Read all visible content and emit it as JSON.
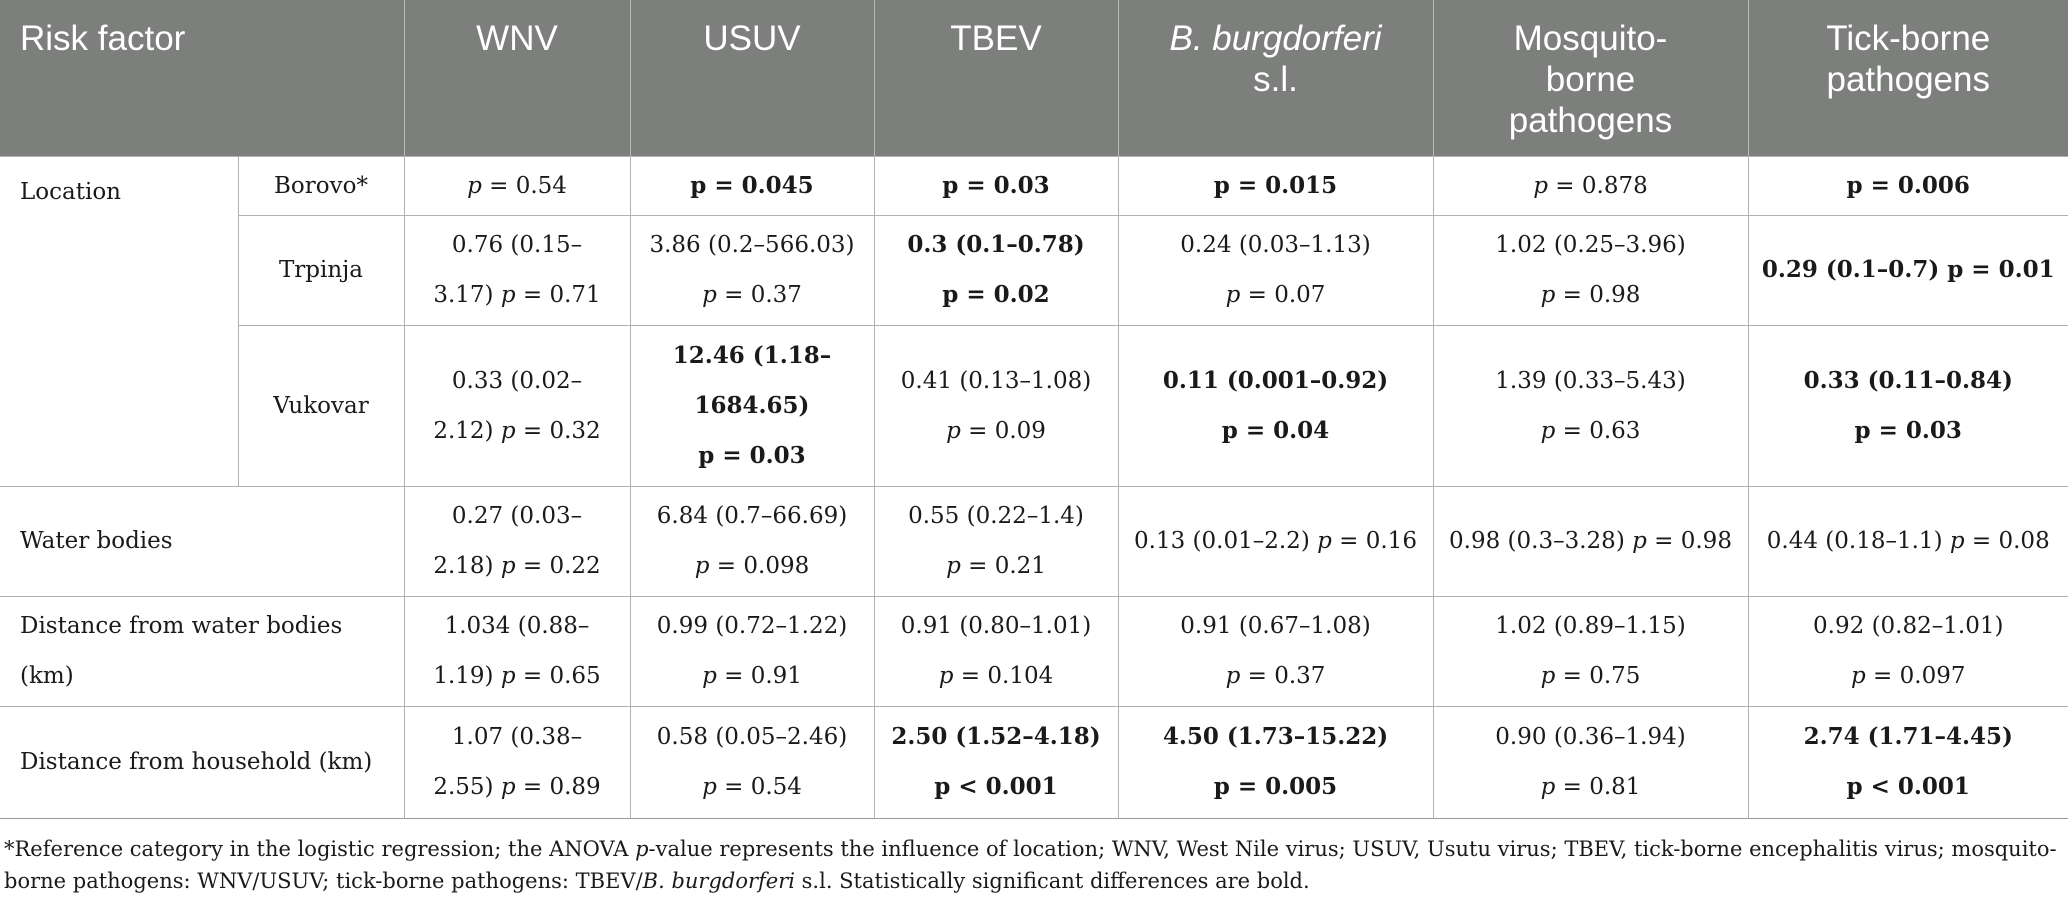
{
  "header": {
    "risk_factor": "Risk factor",
    "wnv": "WNV",
    "usuv": "USUV",
    "tbev": "TBEV",
    "bb_italic": "B. burgdorferi",
    "bb_rest": "s.l.",
    "mosquito_line1": "Mosquito-",
    "mosquito_line2": "borne",
    "mosquito_line3": "pathogens",
    "tick_line1": "Tick-borne",
    "tick_line2": "pathogens"
  },
  "rows": {
    "location_label": "Location",
    "borovo": {
      "label": "Borovo*",
      "wnv": "= 0.54",
      "usuv": "p = 0.045",
      "tbev": "p = 0.03",
      "bb": "p = 0.015",
      "mosq": "= 0.878",
      "tick": "p = 0.006"
    },
    "trpinja": {
      "label": "Trpinja",
      "wnv_a": "0.76 (0.15–",
      "wnv_b": "3.17)",
      "wnv_c": "= 0.71",
      "usuv_a": "3.86 (0.2–566.03)",
      "usuv_b": "= 0.37",
      "tbev_a": "0.3 (0.1–0.78)",
      "tbev_b": "p = 0.02",
      "bb_a": "0.24 (0.03–1.13)",
      "bb_b": "= 0.07",
      "mosq_a": "1.02 (0.25–3.96)",
      "mosq_b": "= 0.98",
      "tick": "0.29 (0.1–0.7) p = 0.01"
    },
    "vukovar": {
      "label": "Vukovar",
      "wnv_a": "0.33 (0.02–",
      "wnv_b": "2.12)",
      "wnv_c": "= 0.32",
      "usuv_a": "12.46 (1.18–",
      "usuv_b": "1684.65)",
      "usuv_c": "p = 0.03",
      "tbev_a": "0.41 (0.13–1.08)",
      "tbev_b": "= 0.09",
      "bb_a": "0.11 (0.001–0.92)",
      "bb_b": "p = 0.04",
      "mosq_a": "1.39 (0.33–5.43)",
      "mosq_b": "= 0.63",
      "tick_a": "0.33 (0.11–0.84)",
      "tick_b": "p = 0.03"
    },
    "water": {
      "label": "Water bodies",
      "wnv_a": "0.27 (0.03–",
      "wnv_b": "2.18)",
      "wnv_c": "= 0.22",
      "usuv_a": "6.84 (0.7–66.69)",
      "usuv_b": "= 0.098",
      "tbev_a": "0.55 (0.22–1.4)",
      "tbev_b": "= 0.21",
      "bb_a": "0.13 (0.01–2.2)",
      "bb_b": "= 0.16",
      "mosq_a": "0.98 (0.3–3.28)",
      "mosq_b": "= 0.98",
      "tick_a": "0.44 (0.18–1.1)",
      "tick_b": "= 0.08"
    },
    "dist_water": {
      "label_a": "Distance from water bodies",
      "label_b": "(km)",
      "wnv_a": "1.034 (0.88–",
      "wnv_b": "1.19)",
      "wnv_c": "= 0.65",
      "usuv_a": "0.99 (0.72–1.22)",
      "usuv_b": "= 0.91",
      "tbev_a": "0.91 (0.80–1.01)",
      "tbev_b": "= 0.104",
      "bb_a": "0.91 (0.67–1.08)",
      "bb_b": "= 0.37",
      "mosq_a": "1.02 (0.89–1.15)",
      "mosq_b": "= 0.75",
      "tick_a": "0.92 (0.82–1.01)",
      "tick_b": "= 0.097"
    },
    "dist_house": {
      "label": "Distance from household (km)",
      "wnv_a": "1.07 (0.38–",
      "wnv_b": "2.55)",
      "wnv_c": "= 0.89",
      "usuv_a": "0.58 (0.05–2.46)",
      "usuv_b": "= 0.54",
      "tbev_a": "2.50 (1.52–4.18)",
      "tbev_b": "p < 0.001",
      "bb_a": "4.50 (1.73–15.22)",
      "bb_b": "p = 0.005",
      "mosq_a": "0.90 (0.36–1.94)",
      "mosq_b": "= 0.81",
      "tick_a": "2.74 (1.71–4.45)",
      "tick_b": "p < 0.001"
    }
  },
  "p_symbol": "p",
  "footnote": {
    "part1": "*Reference category in the logistic regression; the ANOVA ",
    "p_italic": "p",
    "part2": "-value represents the influence of location; WNV, West Nile virus; USUV, Usutu virus; TBEV, tick-borne encephalitis virus; mosquito-borne pathogens: WNV/USUV; tick-borne pathogens: TBEV/",
    "bb_italic": "B. burgdorferi",
    "part3": " s.l. Statistically significant differences are bold."
  },
  "colors": {
    "header_bg": "#7d7f7d",
    "header_text": "#ffffff",
    "grid": "#b2b2b2",
    "text": "#1a1a1a"
  }
}
